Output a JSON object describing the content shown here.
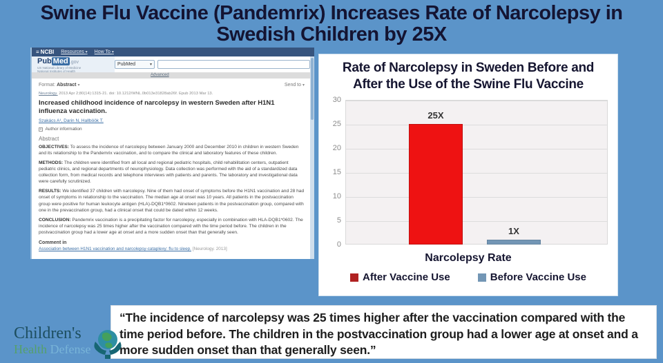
{
  "page": {
    "background": "#5b94c9"
  },
  "title": {
    "text": "Swine Flu Vaccine (Pandemrix) Increases Rate of Narcolepsy in Swedish Children by 25X"
  },
  "pubmed": {
    "navbar": {
      "logo": "NCBI",
      "resources": "Resources",
      "how_to": "How To"
    },
    "logo": {
      "pub": "Pub",
      "med": "Med",
      "gov": ".gov",
      "sub_line1": "US National Library of Medicine",
      "sub_line2": "National Institutes of Health"
    },
    "search": {
      "dropdown_value": "PubMed",
      "advanced": "Advanced"
    },
    "format_prefix": "Format:",
    "format_value": "Abstract",
    "send_to": "Send to",
    "citation_journal": "Neurology.",
    "citation_rest": " 2013 Apr 2;80(14):1315-21. doi: 10.1212/WNL.0b013e31828ab26f. Epub 2013 Mar 13.",
    "article_title": "Increased childhood incidence of narcolepsy in western Sweden after H1N1 influenza vaccination.",
    "authors": "Szakács A¹, Darin N, Hallböök T.",
    "author_info": "Author information",
    "abstract_heading": "Abstract",
    "paragraphs": [
      {
        "label": "OBJECTIVES:",
        "text": "To assess the incidence of narcolepsy between January 2000 and December 2010 in children in western Sweden and its relationship to the Pandemrix vaccination, and to compare the clinical and laboratory features of these children."
      },
      {
        "label": "METHODS:",
        "text": "The children were identified from all local and regional pediatric hospitals, child rehabilitation centers, outpatient pediatric clinics, and regional departments of neurophysiology. Data collection was performed with the aid of a standardized data collection form, from medical records and telephone interviews with patients and parents. The laboratory and investigational data were carefully scrutinized."
      },
      {
        "label": "RESULTS:",
        "text": "We identified 37 children with narcolepsy. Nine of them had onset of symptoms before the H1N1 vaccination and 28 had onset of symptoms in relationship to the vaccination. The median age at onset was 10 years. All patients in the postvaccination group were positive for human leukocyte antigen (HLA)-DQB1*0602. Nineteen patients in the postvaccination group, compared with one in the prevaccination group, had a clinical onset that could be dated within 12 weeks."
      },
      {
        "label": "CONCLUSION:",
        "text": "Pandemrix vaccination is a precipitating factor for narcolepsy, especially in combination with HLA-DQB1*0602. The incidence of narcolepsy was 25 times higher after the vaccination compared with the time period before. The children in the postvaccination group had a lower age at onset and a more sudden onset than that generally seen."
      }
    ],
    "comment_in": "Comment in",
    "comment_link": "Association between H1N1 vaccination and narcolepsy-cataplexy: flu to sleep.",
    "comment_ref": "[Neurology. 2013]"
  },
  "chart_data": {
    "type": "bar",
    "title": "Rate of Narcolepsy in Sweden Before and After the Use of the Swine Flu Vaccine",
    "categories": [
      "Narcolepsy Rate"
    ],
    "series": [
      {
        "name": "After Vaccine Use",
        "values": [
          25
        ],
        "data_label": "25X",
        "color": "#ee1212",
        "border": "#c01010",
        "legend_color": "#b02121"
      },
      {
        "name": "Before Vaccine Use",
        "values": [
          1
        ],
        "data_label": "1X",
        "color": "#7396b5",
        "border": "#63849f",
        "legend_color": "#7396b5"
      }
    ],
    "xlabel": "Narcolepsy Rate",
    "ylabel": "",
    "ylim": [
      0,
      30
    ],
    "yticks": [
      0,
      5,
      10,
      15,
      20,
      25,
      30
    ],
    "grid": true,
    "legend_position": "bottom",
    "plot_bg": "#f4f1f2"
  },
  "quote": {
    "text": "“The incidence of narcolepsy was 25 times higher after the vaccination compared with the time period before. The children in the postvaccination group had a lower age at onset and a more sudden onset than that generally seen.”"
  },
  "chd_logo": {
    "line1": "Children's",
    "word_health": "Health",
    "word_defense": "Defense"
  }
}
